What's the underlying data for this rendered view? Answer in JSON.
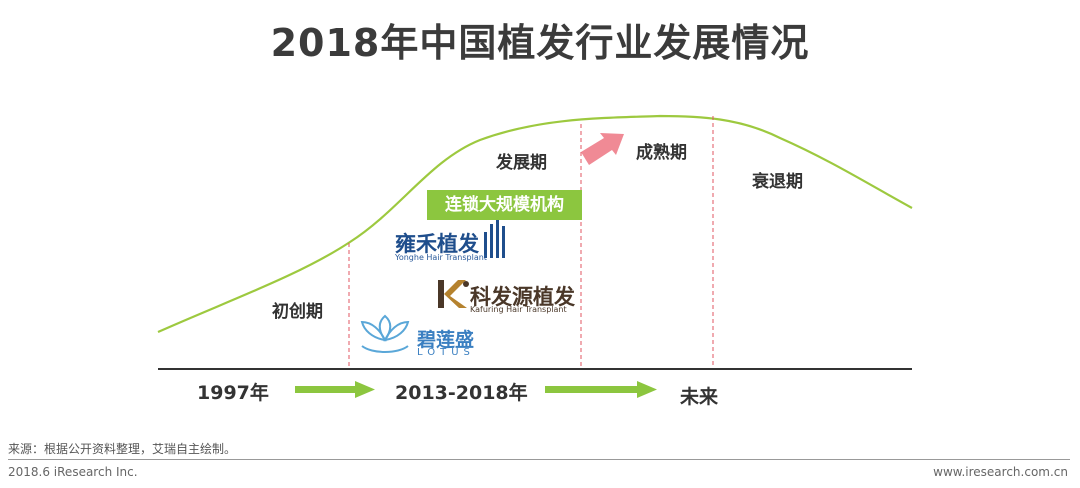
{
  "title": "2018年中国植发行业发展情况",
  "stages": {
    "initial": "初创期",
    "growth": "发展期",
    "mature": "成熟期",
    "decline": "衰退期"
  },
  "banner": "连锁大规模机构",
  "brands": {
    "yonghe_cn": "雍禾植发",
    "yonghe_en": "Yonghe Hair Transplant",
    "kefayuan_cn": "科发源植发",
    "kefayuan_en": "Kafuring Hair Transplant",
    "bilian_cn": "碧莲盛",
    "bilian_en": "LOTUS"
  },
  "timeline": {
    "start": "1997年",
    "middle": "2013-2018年",
    "end": "未来"
  },
  "source": "来源：根据公开资料整理，艾瑞自主绘制。",
  "footer_left": "2018.6 iResearch Inc.",
  "footer_right": "www.iresearch.com.cn",
  "colors": {
    "curve": "#9dc93f",
    "arrow_green": "#8cc63f",
    "arrow_pink": "#f08a95",
    "divider": "#e05560"
  }
}
